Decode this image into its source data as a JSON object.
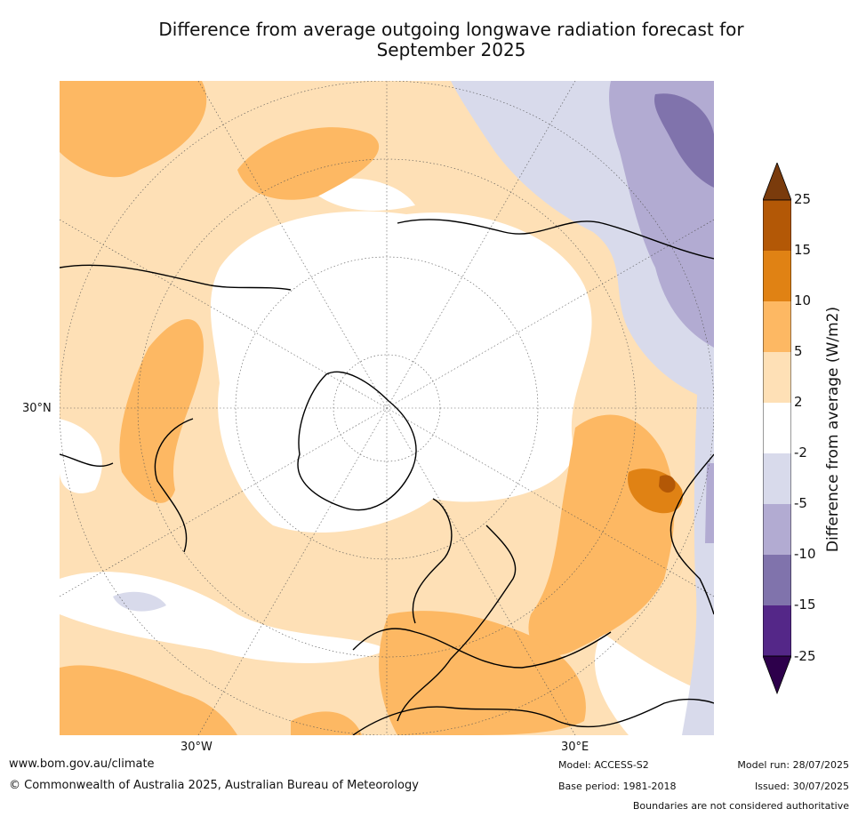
{
  "title_line1": "Difference from average outgoing longwave radiation forecast for",
  "title_line2": "September 2025",
  "map": {
    "projection": "north-polar stereographic",
    "lon_labels": [
      "30°W",
      "30°E"
    ],
    "lat_labels": [
      "30°N"
    ]
  },
  "colorbar": {
    "label": "Difference from average (W/m2)",
    "ticks": [
      "25",
      "15",
      "10",
      "5",
      "2",
      "-2",
      "-5",
      "-10",
      "-15",
      "-25"
    ],
    "colors": {
      "above_25": "#7a3b0c",
      "15_to_25": "#b35806",
      "10_to_15": "#e08214",
      "5_to_10": "#fdb863",
      "2_to_5": "#fee0b6",
      "neutral": "#ffffff",
      "m2_to_m5": "#d8daeb",
      "m5_to_m10": "#b2abd2",
      "m10_to_m15": "#8073ac",
      "m15_to_m25": "#542788",
      "below_m25": "#2d004b"
    }
  },
  "footer": {
    "url": "www.bom.gov.au/climate",
    "copyright": "© Commonwealth of Australia 2025, Australian Bureau of Meteorology",
    "model": "Model: ACCESS-S2",
    "base_period": "Base period: 1981-2018",
    "model_run": "Model run: 28/07/2025",
    "issued": "Issued: 30/07/2025",
    "disclaimer": "Boundaries are not considered authoritative"
  }
}
